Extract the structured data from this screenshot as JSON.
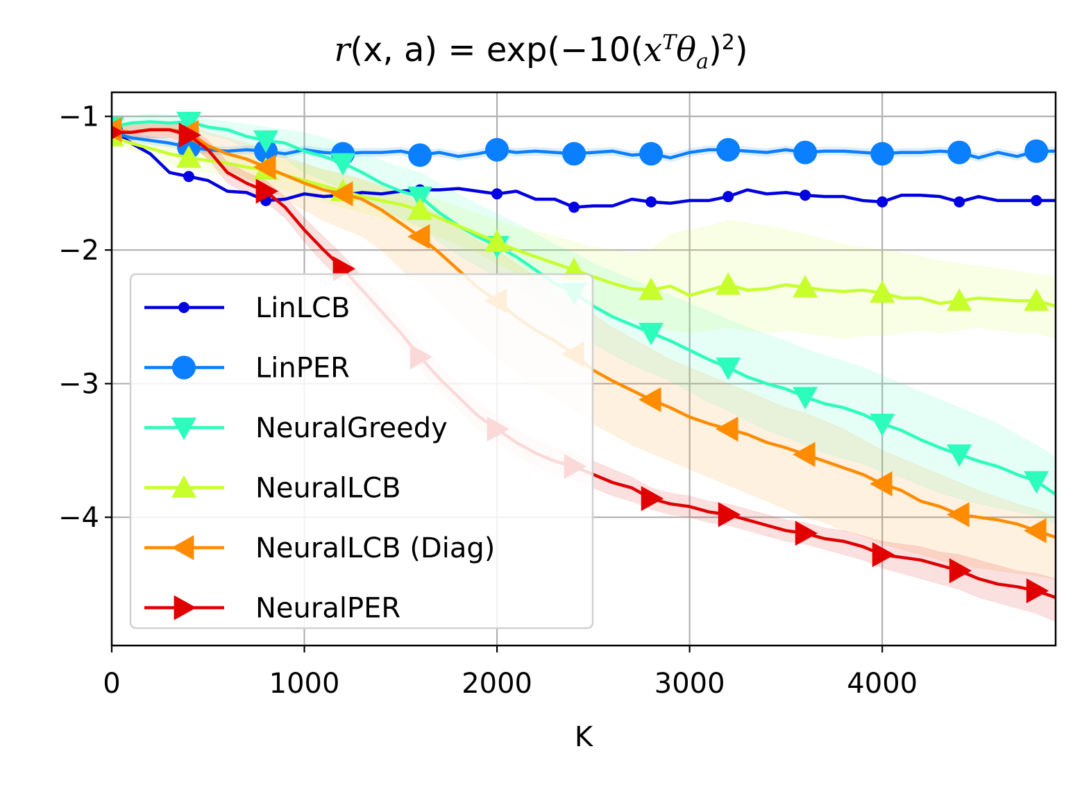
{
  "chart_data": {
    "type": "line",
    "title": "r(x, a) = exp(−10(x^T θ_a)^2)",
    "title_parts": {
      "lhs_r": "r",
      "lhs_args": "(x, a)",
      "equals": " = exp(−10(",
      "x": "x",
      "sup": "T",
      "theta": "θ",
      "sub": "a",
      "close": ")",
      "sup2": "2",
      "end": ")"
    },
    "xlabel": "K",
    "ylabel": "",
    "xlim": [
      0,
      4900
    ],
    "ylim": [
      -4.96,
      -0.82
    ],
    "xticks": [
      0,
      1000,
      2000,
      3000,
      4000
    ],
    "xtick_labels": [
      "0",
      "1000",
      "2000",
      "3000",
      "4000"
    ],
    "yticks": [
      -1,
      -2,
      -3,
      -4
    ],
    "ytick_labels": [
      "−1",
      "−2",
      "−3",
      "−4"
    ],
    "grid": true,
    "legend_position": "lower-left",
    "series": [
      {
        "name": "LinLCB",
        "color": "#0000e0",
        "marker": "point",
        "x": [
          0,
          100,
          200,
          300,
          400,
          500,
          600,
          700,
          800,
          900,
          1000,
          1100,
          1200,
          1300,
          1400,
          1500,
          1600,
          1700,
          1800,
          1900,
          2000,
          2100,
          2200,
          2300,
          2400,
          2500,
          2600,
          2700,
          2800,
          2900,
          3000,
          3100,
          3200,
          3300,
          3400,
          3500,
          3600,
          3700,
          3800,
          3900,
          4000,
          4100,
          4200,
          4300,
          4400,
          4500,
          4600,
          4700,
          4800,
          4900
        ],
        "y": [
          -1.1,
          -1.2,
          -1.28,
          -1.42,
          -1.45,
          -1.48,
          -1.56,
          -1.57,
          -1.63,
          -1.62,
          -1.58,
          -1.6,
          -1.59,
          -1.57,
          -1.58,
          -1.56,
          -1.55,
          -1.55,
          -1.54,
          -1.56,
          -1.58,
          -1.56,
          -1.62,
          -1.62,
          -1.68,
          -1.67,
          -1.67,
          -1.62,
          -1.64,
          -1.65,
          -1.63,
          -1.63,
          -1.6,
          -1.55,
          -1.58,
          -1.57,
          -1.59,
          -1.6,
          -1.6,
          -1.63,
          -1.64,
          -1.59,
          -1.59,
          -1.6,
          -1.64,
          -1.6,
          -1.63,
          -1.63,
          -1.63,
          -1.63
        ],
        "band": [
          0.01
        ],
        "marker_every": 4
      },
      {
        "name": "LinPER",
        "color": "#0a7fff",
        "marker": "circle",
        "x": [
          0,
          100,
          200,
          300,
          400,
          500,
          600,
          700,
          800,
          900,
          1000,
          1100,
          1200,
          1300,
          1400,
          1500,
          1600,
          1700,
          1800,
          1900,
          2000,
          2100,
          2200,
          2300,
          2400,
          2500,
          2600,
          2700,
          2800,
          2900,
          3000,
          3100,
          3200,
          3300,
          3400,
          3500,
          3600,
          3700,
          3800,
          3900,
          4000,
          4100,
          4200,
          4300,
          4400,
          4500,
          4600,
          4700,
          4800,
          4900
        ],
        "y": [
          -1.12,
          -1.16,
          -1.18,
          -1.2,
          -1.23,
          -1.25,
          -1.26,
          -1.25,
          -1.26,
          -1.28,
          -1.25,
          -1.27,
          -1.28,
          -1.27,
          -1.27,
          -1.26,
          -1.29,
          -1.27,
          -1.3,
          -1.28,
          -1.25,
          -1.27,
          -1.26,
          -1.27,
          -1.28,
          -1.27,
          -1.26,
          -1.29,
          -1.28,
          -1.31,
          -1.27,
          -1.25,
          -1.25,
          -1.26,
          -1.27,
          -1.25,
          -1.27,
          -1.26,
          -1.26,
          -1.27,
          -1.28,
          -1.27,
          -1.27,
          -1.26,
          -1.27,
          -1.31,
          -1.27,
          -1.3,
          -1.26,
          -1.26
        ],
        "band": [
          0.03
        ],
        "marker_every": 4
      },
      {
        "name": "NeuralGreedy",
        "color": "#2cfcbc",
        "marker": "triangle-down",
        "x": [
          0,
          100,
          200,
          300,
          400,
          500,
          600,
          700,
          800,
          900,
          1000,
          1100,
          1200,
          1300,
          1400,
          1500,
          1600,
          1700,
          1800,
          1900,
          2000,
          2100,
          2200,
          2300,
          2400,
          2500,
          2600,
          2700,
          2800,
          2900,
          3000,
          3100,
          3200,
          3300,
          3400,
          3500,
          3600,
          3700,
          3800,
          3900,
          4000,
          4100,
          4200,
          4300,
          4400,
          4500,
          4600,
          4700,
          4800,
          4900
        ],
        "y": [
          -1.08,
          -1.05,
          -1.04,
          -1.05,
          -1.04,
          -1.08,
          -1.1,
          -1.15,
          -1.18,
          -1.2,
          -1.26,
          -1.3,
          -1.35,
          -1.42,
          -1.5,
          -1.56,
          -1.6,
          -1.72,
          -1.82,
          -1.9,
          -1.97,
          -2.05,
          -2.15,
          -2.25,
          -2.32,
          -2.42,
          -2.5,
          -2.56,
          -2.62,
          -2.68,
          -2.75,
          -2.82,
          -2.88,
          -2.95,
          -3.0,
          -3.04,
          -3.1,
          -3.15,
          -3.18,
          -3.23,
          -3.3,
          -3.35,
          -3.42,
          -3.48,
          -3.53,
          -3.58,
          -3.62,
          -3.68,
          -3.73,
          -3.83
        ],
        "band_upper": [
          -1.04,
          -1.0,
          -0.98,
          -0.99,
          -1.0,
          -1.02,
          -1.04,
          -1.06,
          -1.08,
          -1.1,
          -1.12,
          -1.16,
          -1.2,
          -1.26,
          -1.33,
          -1.38,
          -1.42,
          -1.5,
          -1.58,
          -1.66,
          -1.73,
          -1.8,
          -1.88,
          -1.96,
          -2.02,
          -2.1,
          -2.16,
          -2.22,
          -2.28,
          -2.34,
          -2.4,
          -2.46,
          -2.52,
          -2.58,
          -2.63,
          -2.68,
          -2.74,
          -2.79,
          -2.83,
          -2.88,
          -2.94,
          -3.0,
          -3.06,
          -3.12,
          -3.18,
          -3.24,
          -3.3,
          -3.38,
          -3.46,
          -3.55
        ],
        "band_lower": [
          -1.12,
          -1.1,
          -1.1,
          -1.11,
          -1.1,
          -1.14,
          -1.17,
          -1.24,
          -1.28,
          -1.32,
          -1.42,
          -1.48,
          -1.54,
          -1.62,
          -1.7,
          -1.76,
          -1.82,
          -1.94,
          -2.04,
          -2.12,
          -2.2,
          -2.28,
          -2.38,
          -2.5,
          -2.6,
          -2.7,
          -2.78,
          -2.86,
          -2.92,
          -2.98,
          -3.06,
          -3.14,
          -3.2,
          -3.28,
          -3.35,
          -3.4,
          -3.46,
          -3.52,
          -3.56,
          -3.6,
          -3.66,
          -3.7,
          -3.76,
          -3.82,
          -3.86,
          -3.9,
          -3.93,
          -3.96,
          -3.99,
          -4.05
        ],
        "marker_every": 4
      },
      {
        "name": "NeuralLCB",
        "color": "#c6ff2c",
        "marker": "triangle-up",
        "x": [
          0,
          100,
          200,
          300,
          400,
          500,
          600,
          700,
          800,
          900,
          1000,
          1100,
          1200,
          1300,
          1400,
          1500,
          1600,
          1700,
          1800,
          1900,
          2000,
          2100,
          2200,
          2300,
          2400,
          2500,
          2600,
          2700,
          2800,
          2900,
          3000,
          3100,
          3200,
          3300,
          3400,
          3500,
          3600,
          3700,
          3800,
          3900,
          4000,
          4100,
          4200,
          4300,
          4400,
          4500,
          4600,
          4700,
          4800,
          4900
        ],
        "y": [
          -1.15,
          -1.2,
          -1.24,
          -1.28,
          -1.31,
          -1.33,
          -1.35,
          -1.38,
          -1.4,
          -1.44,
          -1.48,
          -1.52,
          -1.56,
          -1.6,
          -1.63,
          -1.66,
          -1.7,
          -1.76,
          -1.82,
          -1.88,
          -1.94,
          -2.0,
          -2.05,
          -2.1,
          -2.15,
          -2.2,
          -2.25,
          -2.29,
          -2.3,
          -2.27,
          -2.34,
          -2.3,
          -2.26,
          -2.3,
          -2.29,
          -2.26,
          -2.28,
          -2.3,
          -2.31,
          -2.3,
          -2.32,
          -2.36,
          -2.36,
          -2.4,
          -2.38,
          -2.36,
          -2.37,
          -2.38,
          -2.38,
          -2.42
        ],
        "band_upper": [
          -1.12,
          -1.15,
          -1.18,
          -1.2,
          -1.22,
          -1.24,
          -1.26,
          -1.28,
          -1.3,
          -1.33,
          -1.36,
          -1.4,
          -1.44,
          -1.48,
          -1.52,
          -1.55,
          -1.58,
          -1.63,
          -1.68,
          -1.73,
          -1.78,
          -1.83,
          -1.86,
          -1.9,
          -1.94,
          -1.98,
          -2.0,
          -2.02,
          -2.0,
          -1.88,
          -1.85,
          -1.82,
          -1.78,
          -1.8,
          -1.82,
          -1.85,
          -1.88,
          -1.92,
          -1.96,
          -1.98,
          -2.0,
          -2.02,
          -2.05,
          -2.08,
          -2.1,
          -2.12,
          -2.14,
          -2.16,
          -2.18,
          -2.2
        ],
        "band_lower": [
          -1.18,
          -1.25,
          -1.3,
          -1.36,
          -1.4,
          -1.42,
          -1.44,
          -1.48,
          -1.5,
          -1.55,
          -1.6,
          -1.64,
          -1.68,
          -1.72,
          -1.76,
          -1.8,
          -1.84,
          -1.9,
          -1.96,
          -2.02,
          -2.1,
          -2.17,
          -2.24,
          -2.3,
          -2.36,
          -2.42,
          -2.48,
          -2.52,
          -2.56,
          -2.6,
          -2.62,
          -2.6,
          -2.58,
          -2.6,
          -2.62,
          -2.6,
          -2.62,
          -2.64,
          -2.66,
          -2.64,
          -2.64,
          -2.62,
          -2.6,
          -2.62,
          -2.6,
          -2.58,
          -2.6,
          -2.62,
          -2.62,
          -2.66
        ],
        "marker_every": 4
      },
      {
        "name": "NeuralLCB (Diag)",
        "color": "#ff8c00",
        "marker": "triangle-left",
        "x": [
          0,
          100,
          200,
          300,
          400,
          500,
          600,
          700,
          800,
          900,
          1000,
          1100,
          1200,
          1300,
          1400,
          1500,
          1600,
          1700,
          1800,
          1900,
          2000,
          2100,
          2200,
          2300,
          2400,
          2500,
          2600,
          2700,
          2800,
          2900,
          3000,
          3100,
          3200,
          3300,
          3400,
          3500,
          3600,
          3700,
          3800,
          3900,
          4000,
          4100,
          4200,
          4300,
          4400,
          4500,
          4600,
          4700,
          4800,
          4900
        ],
        "y": [
          -1.1,
          -1.12,
          -1.1,
          -1.1,
          -1.12,
          -1.22,
          -1.28,
          -1.32,
          -1.38,
          -1.44,
          -1.5,
          -1.55,
          -1.58,
          -1.62,
          -1.7,
          -1.8,
          -1.9,
          -2.02,
          -2.15,
          -2.28,
          -2.38,
          -2.5,
          -2.6,
          -2.68,
          -2.78,
          -2.9,
          -2.98,
          -3.05,
          -3.12,
          -3.18,
          -3.25,
          -3.3,
          -3.34,
          -3.38,
          -3.44,
          -3.48,
          -3.53,
          -3.58,
          -3.63,
          -3.68,
          -3.75,
          -3.8,
          -3.88,
          -3.92,
          -3.98,
          -4.0,
          -4.02,
          -4.05,
          -4.1,
          -4.15
        ],
        "band_upper": [
          -1.06,
          -1.06,
          -1.04,
          -1.04,
          -1.05,
          -1.12,
          -1.16,
          -1.2,
          -1.24,
          -1.3,
          -1.35,
          -1.4,
          -1.43,
          -1.47,
          -1.52,
          -1.58,
          -1.65,
          -1.74,
          -1.84,
          -1.93,
          -2.0,
          -2.1,
          -2.2,
          -2.3,
          -2.38,
          -2.48,
          -2.58,
          -2.66,
          -2.74,
          -2.82,
          -2.88,
          -2.94,
          -3.0,
          -3.06,
          -3.12,
          -3.18,
          -3.22,
          -3.28,
          -3.34,
          -3.42,
          -3.5,
          -3.56,
          -3.62,
          -3.68,
          -3.74,
          -3.8,
          -3.85,
          -3.9,
          -3.94,
          -4.0
        ],
        "band_lower": [
          -1.14,
          -1.18,
          -1.16,
          -1.16,
          -1.2,
          -1.32,
          -1.4,
          -1.46,
          -1.54,
          -1.62,
          -1.7,
          -1.78,
          -1.84,
          -1.9,
          -2.0,
          -2.14,
          -2.26,
          -2.4,
          -2.54,
          -2.68,
          -2.8,
          -2.92,
          -3.02,
          -3.1,
          -3.2,
          -3.3,
          -3.38,
          -3.46,
          -3.52,
          -3.58,
          -3.64,
          -3.7,
          -3.76,
          -3.82,
          -3.88,
          -3.94,
          -4.0,
          -4.04,
          -4.1,
          -4.14,
          -4.2,
          -4.24,
          -4.28,
          -4.32,
          -4.36,
          -4.38,
          -4.4,
          -4.42,
          -4.44,
          -4.46
        ],
        "marker_every": 4
      },
      {
        "name": "NeuralPER",
        "color": "#e00000",
        "marker": "triangle-right",
        "x": [
          0,
          100,
          200,
          300,
          400,
          500,
          600,
          700,
          800,
          900,
          1000,
          1100,
          1200,
          1300,
          1400,
          1500,
          1600,
          1700,
          1800,
          1900,
          2000,
          2100,
          2200,
          2300,
          2400,
          2500,
          2600,
          2700,
          2800,
          2900,
          3000,
          3100,
          3200,
          3300,
          3400,
          3500,
          3600,
          3700,
          3800,
          3900,
          4000,
          4100,
          4200,
          4300,
          4400,
          4500,
          4600,
          4700,
          4800,
          4900
        ],
        "y": [
          -1.12,
          -1.12,
          -1.1,
          -1.1,
          -1.14,
          -1.25,
          -1.42,
          -1.5,
          -1.56,
          -1.68,
          -1.85,
          -2.0,
          -2.14,
          -2.3,
          -2.46,
          -2.62,
          -2.8,
          -2.96,
          -3.1,
          -3.24,
          -3.34,
          -3.44,
          -3.52,
          -3.58,
          -3.62,
          -3.68,
          -3.74,
          -3.78,
          -3.86,
          -3.9,
          -3.92,
          -3.96,
          -3.98,
          -4.02,
          -4.06,
          -4.1,
          -4.12,
          -4.16,
          -4.18,
          -4.22,
          -4.28,
          -4.3,
          -4.32,
          -4.36,
          -4.4,
          -4.46,
          -4.5,
          -4.52,
          -4.55,
          -4.6
        ],
        "band_upper": [
          -1.06,
          -1.06,
          -1.04,
          -1.04,
          -1.08,
          -1.18,
          -1.34,
          -1.42,
          -1.48,
          -1.6,
          -1.76,
          -1.9,
          -2.04,
          -2.2,
          -2.36,
          -2.52,
          -2.7,
          -2.86,
          -3.0,
          -3.14,
          -3.24,
          -3.34,
          -3.42,
          -3.48,
          -3.52,
          -3.58,
          -3.64,
          -3.7,
          -3.78,
          -3.82,
          -3.84,
          -3.88,
          -3.9,
          -3.94,
          -3.98,
          -4.02,
          -4.04,
          -4.08,
          -4.1,
          -4.14,
          -4.18,
          -4.2,
          -4.22,
          -4.26,
          -4.28,
          -4.32,
          -4.36,
          -4.4,
          -4.42,
          -4.46
        ],
        "band_lower": [
          -1.18,
          -1.18,
          -1.16,
          -1.16,
          -1.2,
          -1.32,
          -1.5,
          -1.58,
          -1.64,
          -1.76,
          -1.94,
          -2.1,
          -2.24,
          -2.4,
          -2.56,
          -2.72,
          -2.9,
          -3.06,
          -3.2,
          -3.34,
          -3.44,
          -3.54,
          -3.62,
          -3.68,
          -3.72,
          -3.78,
          -3.84,
          -3.88,
          -3.94,
          -3.98,
          -4.0,
          -4.04,
          -4.06,
          -4.1,
          -4.14,
          -4.18,
          -4.2,
          -4.24,
          -4.28,
          -4.32,
          -4.38,
          -4.42,
          -4.46,
          -4.5,
          -4.54,
          -4.6,
          -4.64,
          -4.68,
          -4.72,
          -4.78
        ],
        "marker_every": 4
      }
    ]
  }
}
